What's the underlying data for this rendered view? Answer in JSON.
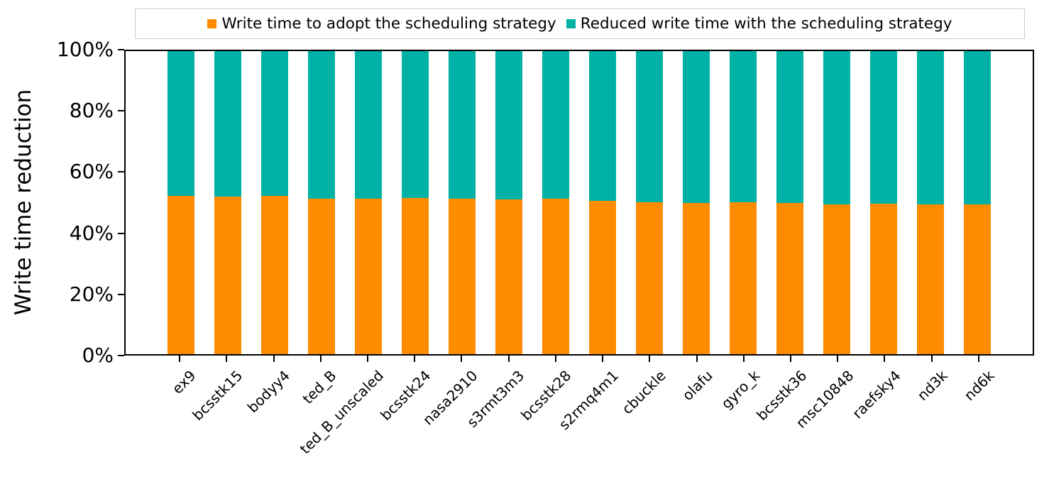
{
  "chart_data": {
    "type": "bar",
    "stacked": true,
    "title": "",
    "xlabel": "",
    "ylabel": "Write time reduction",
    "ylim": [
      0,
      100
    ],
    "grid": false,
    "legend_position": "top",
    "yticks": [
      {
        "value": 0,
        "label": "0%"
      },
      {
        "value": 20,
        "label": "20%"
      },
      {
        "value": 40,
        "label": "40%"
      },
      {
        "value": 60,
        "label": "60%"
      },
      {
        "value": 80,
        "label": "80%"
      },
      {
        "value": 100,
        "label": "100%"
      }
    ],
    "categories": [
      "ex9",
      "bcsstk15",
      "bodyy4",
      "ted_B",
      "ted_B_unscaled",
      "bcsstk24",
      "nasa2910",
      "s3rmt3m3",
      "bcsstk28",
      "s2rmq4m1",
      "cbuckle",
      "olafu",
      "gyro_k",
      "bcsstk36",
      "msc10848",
      "raefsky4",
      "nd3k",
      "nd6k"
    ],
    "series": [
      {
        "name": "Write time to adopt the scheduling strategy",
        "color": "#ff8c00",
        "values": [
          52.3,
          52.1,
          52.3,
          51.3,
          51.2,
          51.5,
          51.3,
          51.1,
          51.2,
          50.6,
          50.1,
          50.0,
          50.1,
          49.8,
          49.5,
          49.7,
          49.5,
          49.3
        ]
      },
      {
        "name": "Reduced write time with the scheduling strategy",
        "color": "#00b2a5",
        "values": [
          47.7,
          47.9,
          47.7,
          48.7,
          48.8,
          48.5,
          48.7,
          48.9,
          48.8,
          49.4,
          49.9,
          50.0,
          49.9,
          50.2,
          50.5,
          50.3,
          50.5,
          50.7
        ]
      }
    ]
  }
}
